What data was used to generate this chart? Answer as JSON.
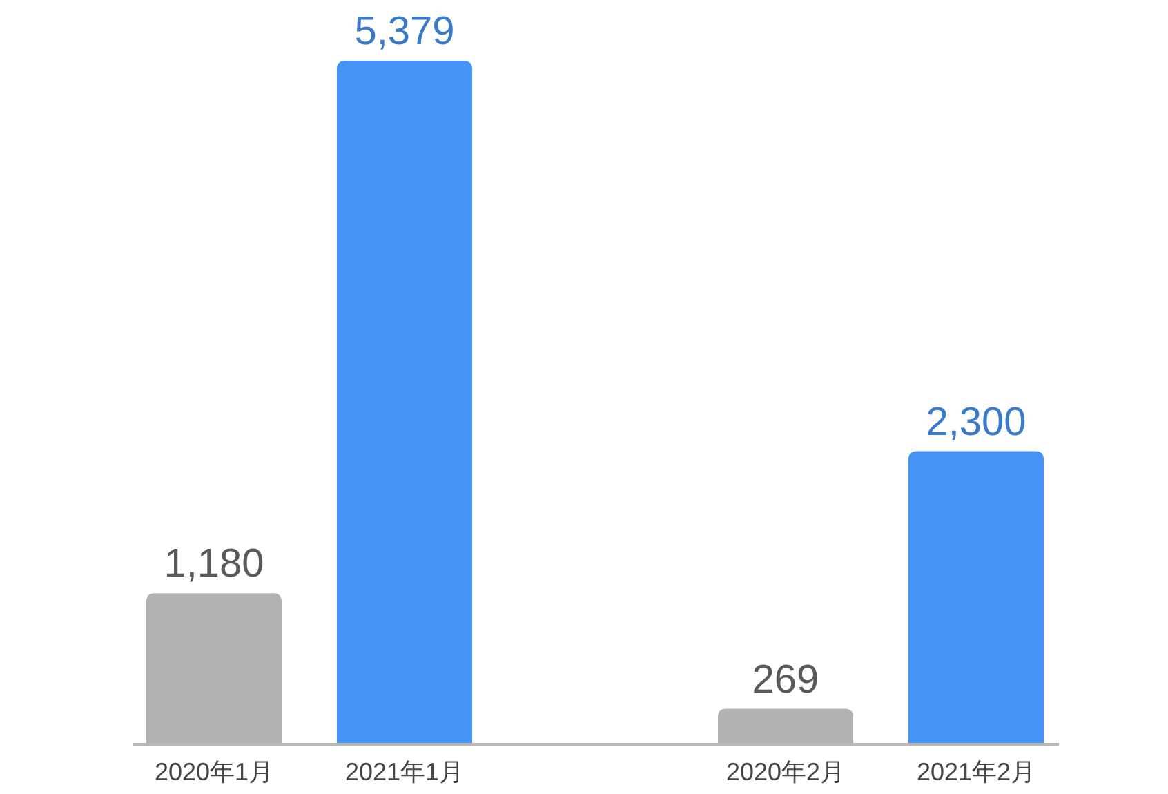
{
  "chart_data": {
    "type": "bar",
    "categories": [
      "2020年1月",
      "2021年1月",
      null,
      "2020年2月",
      "2021年2月"
    ],
    "values": [
      1180,
      5379,
      null,
      269,
      2300
    ],
    "colors": [
      "#b2b2b2",
      "#4594f5",
      null,
      "#b2b2b2",
      "#4594f5"
    ],
    "value_labels": [
      "1,180",
      "5,379",
      null,
      "269",
      "2,300"
    ]
  }
}
